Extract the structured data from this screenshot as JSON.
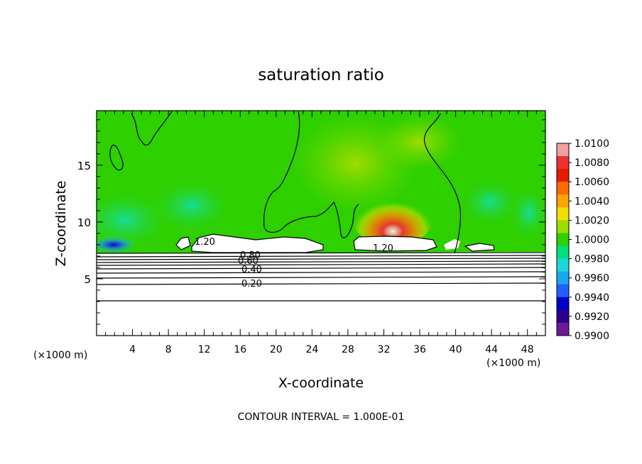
{
  "chart_data": {
    "type": "heatmap",
    "title": "saturation ratio",
    "xlabel": "X-coordinate",
    "ylabel": "Z-coordinate",
    "x_unit": "(×1000 m)",
    "xlim": [
      0,
      50
    ],
    "ylim": [
      0,
      19.8
    ],
    "x_ticks": [
      4,
      8,
      12,
      16,
      20,
      24,
      28,
      32,
      36,
      40,
      44,
      48
    ],
    "y_ticks": [
      5,
      10,
      15
    ],
    "footer": "CONTOUR INTERVAL = 1.000E-01",
    "colorbar": {
      "min": 0.99,
      "max": 1.01,
      "labels": [
        "1.0100",
        "1.0080",
        "1.0060",
        "1.0040",
        "1.0020",
        "1.0000",
        "0.9980",
        "0.9960",
        "0.9940",
        "0.9920",
        "0.9900"
      ],
      "colors": [
        "#f4a0a0",
        "#ee3030",
        "#e61a00",
        "#ff6a00",
        "#ffa500",
        "#f0e000",
        "#9cdc00",
        "#2ed000",
        "#00e080",
        "#1ed6d6",
        "#18a8f0",
        "#2060ff",
        "#0000c8",
        "#2a0090",
        "#6a1a9a"
      ]
    },
    "contour_labels": [
      "1.20",
      "1.20",
      "0.80",
      "0.60",
      "0.40",
      "0.20"
    ],
    "contour_levels": [
      0.1,
      0.2,
      0.3,
      0.4,
      0.5,
      0.6,
      0.7,
      0.8,
      0.9,
      1.0,
      1.1,
      1.2
    ]
  }
}
